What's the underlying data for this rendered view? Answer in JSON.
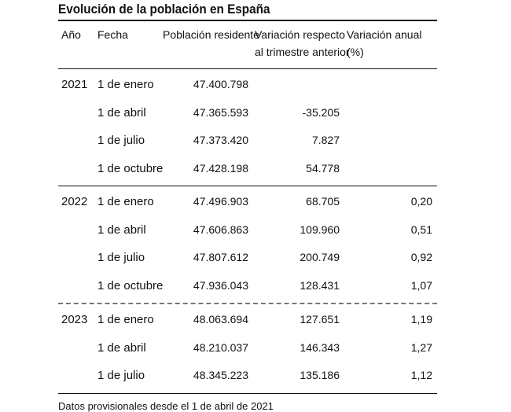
{
  "title": "Evolución de la población en España",
  "headers": {
    "year": "Año",
    "date": "Fecha",
    "population": "Población residente",
    "variation_line1": "Variación respecto",
    "variation_line2": "al trimestre anterior",
    "annual_line1": "Variación anual",
    "annual_line2": "(%)"
  },
  "groups": [
    {
      "year": "2021",
      "rows": [
        {
          "date": "1 de enero",
          "population": "47.400.798",
          "variation": "",
          "annual": ""
        },
        {
          "date": "1 de abril",
          "population": "47.365.593",
          "variation": "-35.205",
          "annual": ""
        },
        {
          "date": "1 de julio",
          "population": "47.373.420",
          "variation": "7.827",
          "annual": ""
        },
        {
          "date": "1 de octubre",
          "population": "47.428.198",
          "variation": "54.778",
          "annual": ""
        }
      ]
    },
    {
      "year": "2022",
      "rows": [
        {
          "date": "1 de enero",
          "population": "47.496.903",
          "variation": "68.705",
          "annual": "0,20"
        },
        {
          "date": "1 de abril",
          "population": "47.606.863",
          "variation": "109.960",
          "annual": "0,51"
        },
        {
          "date": "1 de julio",
          "population": "47.807.612",
          "variation": "200.749",
          "annual": "0,92"
        },
        {
          "date": "1 de octubre",
          "population": "47.936.043",
          "variation": "128.431",
          "annual": "1,07"
        }
      ]
    },
    {
      "year": "2023",
      "rows": [
        {
          "date": "1 de enero",
          "population": "48.063.694",
          "variation": "127.651",
          "annual": "1,19"
        },
        {
          "date": "1 de abril",
          "population": "48.210.037",
          "variation": "146.343",
          "annual": "1,27"
        },
        {
          "date": "1 de julio",
          "population": "48.345.223",
          "variation": "135.186",
          "annual": "1,12"
        }
      ]
    }
  ],
  "footnote": "Datos provisionales desde el 1 de abril de 2021"
}
